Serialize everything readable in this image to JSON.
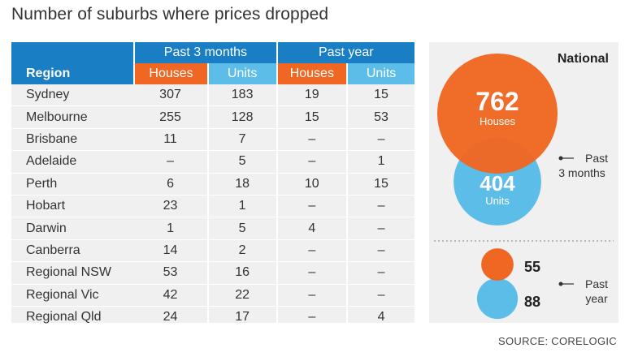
{
  "title": "Number of suburbs where prices dropped",
  "source": "SOURCE: CORELOGIC",
  "colors": {
    "header_blue": "#1a7ec4",
    "houses_orange": "#ef6722",
    "units_blue": "#5dbde9",
    "panel_bg": "#f0f0f0"
  },
  "chart_data": [
    {
      "type": "table",
      "group_headers": [
        "Past 3 months",
        "Past year"
      ],
      "columns": [
        "Region",
        "Houses",
        "Units",
        "Houses",
        "Units"
      ],
      "rows": [
        {
          "region": "Sydney",
          "cells": [
            "307",
            "183",
            "19",
            "15"
          ]
        },
        {
          "region": "Melbourne",
          "cells": [
            "255",
            "128",
            "15",
            "53"
          ]
        },
        {
          "region": "Brisbane",
          "cells": [
            "11",
            "7",
            "–",
            "–"
          ]
        },
        {
          "region": "Adelaide",
          "cells": [
            "–",
            "5",
            "–",
            "1"
          ]
        },
        {
          "region": "Perth",
          "cells": [
            "6",
            "18",
            "10",
            "15"
          ]
        },
        {
          "region": "Hobart",
          "cells": [
            "23",
            "1",
            "–",
            "–"
          ]
        },
        {
          "region": "Darwin",
          "cells": [
            "1",
            "5",
            "4",
            "–"
          ]
        },
        {
          "region": "Canberra",
          "cells": [
            "14",
            "2",
            "–",
            "–"
          ]
        },
        {
          "region": "Regional NSW",
          "cells": [
            "53",
            "16",
            "–",
            "–"
          ]
        },
        {
          "region": "Regional Vic",
          "cells": [
            "42",
            "22",
            "–",
            "–"
          ]
        },
        {
          "region": "Regional Qld",
          "cells": [
            "24",
            "17",
            "–",
            "4"
          ]
        }
      ]
    },
    {
      "type": "bubble",
      "title": "National",
      "groups": [
        {
          "label": "Past 3 months",
          "houses": 762,
          "units": 404,
          "houses_label": "Houses",
          "units_label": "Units"
        },
        {
          "label": "Past year",
          "houses": 55,
          "units": 88
        }
      ]
    }
  ]
}
